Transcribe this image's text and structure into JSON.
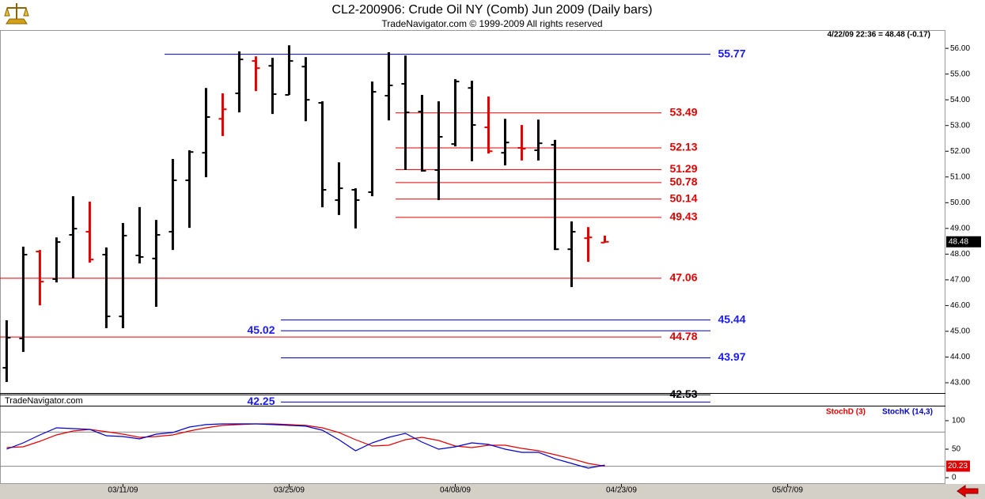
{
  "chart_data": [
    {
      "type": "ohlc",
      "title": "CL2-200906:  Crude Oil NY (Comb) Jun 2009  (Daily bars)",
      "subtitle": "TradeNavigator.com © 1999-2009 All rights reserved",
      "info": "4/22/09 22:36 = 48.48 (-0.17)",
      "watermark": "TradeNavigator.com",
      "open": [
        43.58,
        44.72,
        48.1,
        47.03,
        48.75,
        48.87,
        47.98,
        45.58,
        47.95,
        47.83,
        48.87,
        50.87,
        51.94,
        53.26,
        54.25,
        55.51,
        55.32,
        54.19,
        55.29,
        53.88,
        50.1,
        50.5,
        50.41,
        54.16,
        54.62,
        53.54,
        51.27,
        52.28,
        54.46,
        52.93,
        51.94,
        52.13,
        52.04,
        52.25,
        48.19,
        48.62,
        48.45
      ],
      "high": [
        45.43,
        48.29,
        48.16,
        48.65,
        50.25,
        50.04,
        48.26,
        49.21,
        49.83,
        49.33,
        51.7,
        52.04,
        54.46,
        54.25,
        55.88,
        55.69,
        55.63,
        56.12,
        55.66,
        53.94,
        51.57,
        50.56,
        54.71,
        55.85,
        55.72,
        54.19,
        53.94,
        54.8,
        54.74,
        54.13,
        53.26,
        53.02,
        53.23,
        52.44,
        49.27,
        49.05,
        48.72
      ],
      "low": [
        43.03,
        44.2,
        46.01,
        46.9,
        47.06,
        47.67,
        45.12,
        45.12,
        47.64,
        45.95,
        48.16,
        49.02,
        50.99,
        52.59,
        53.51,
        54.34,
        53.45,
        54.19,
        53.17,
        49.82,
        49.52,
        49.0,
        50.25,
        53.2,
        51.27,
        51.21,
        50.1,
        52.19,
        51.61,
        51.91,
        51.45,
        51.64,
        51.64,
        48.16,
        46.72,
        47.7,
        48.44
      ],
      "close": [
        44.75,
        47.98,
        46.93,
        48.47,
        48.99,
        47.79,
        45.58,
        48.72,
        47.89,
        48.75,
        50.87,
        51.97,
        53.33,
        53.63,
        55.57,
        55.23,
        54.22,
        55.51,
        54.0,
        50.5,
        50.56,
        50.1,
        54.31,
        54.56,
        53.51,
        51.24,
        52.56,
        54.71,
        53.02,
        52.0,
        52.34,
        52.1,
        52.31,
        48.19,
        48.87,
        48.65,
        48.48
      ],
      "colors": [
        "#000000",
        "#000000",
        "#e00000",
        "#000000",
        "#000000",
        "#e00000",
        "#000000",
        "#000000",
        "#000000",
        "#000000",
        "#000000",
        "#000000",
        "#000000",
        "#e00000",
        "#000000",
        "#e00000",
        "#000000",
        "#000000",
        "#000000",
        "#000000",
        "#000000",
        "#000000",
        "#000000",
        "#000000",
        "#000000",
        "#000000",
        "#000000",
        "#000000",
        "#000000",
        "#e00000",
        "#000000",
        "#e00000",
        "#000000",
        "#000000",
        "#000000",
        "#e00000",
        "#e00000"
      ],
      "levels": [
        {
          "value": 55.77,
          "color": "#0000cc"
        },
        {
          "value": 53.49,
          "color": "#e00000"
        },
        {
          "value": 52.13,
          "color": "#e00000"
        },
        {
          "value": 51.29,
          "color": "#e00000"
        },
        {
          "value": 50.78,
          "color": "#e00000"
        },
        {
          "value": 50.14,
          "color": "#e00000"
        },
        {
          "value": 49.43,
          "color": "#e00000"
        },
        {
          "value": 47.06,
          "color": "#e00000"
        },
        {
          "value": 45.44,
          "color": "#0000cc"
        },
        {
          "value": 45.02,
          "color": "#0000cc"
        },
        {
          "value": 44.78,
          "color": "#e00000"
        },
        {
          "value": 43.97,
          "color": "#0000cc"
        },
        {
          "value": 42.53,
          "color": "#000000"
        },
        {
          "value": 42.25,
          "color": "#0000cc"
        }
      ],
      "xlim": [
        -0.4,
        56.5
      ],
      "ylim": [
        42.6,
        56.65
      ],
      "yticks": [
        {
          "value": 56,
          "label": "56.00"
        },
        {
          "value": 55,
          "label": "55.00"
        },
        {
          "value": 54,
          "label": "54.00"
        },
        {
          "value": 53,
          "label": "53.00"
        },
        {
          "value": 52,
          "label": "52.00"
        },
        {
          "value": 51,
          "label": "51.00"
        },
        {
          "value": 50,
          "label": "50.00"
        },
        {
          "value": 49,
          "label": "49.00"
        },
        {
          "value": 48,
          "label": "48.00"
        },
        {
          "value": 47,
          "label": "47.00"
        },
        {
          "value": 46,
          "label": "46.00"
        },
        {
          "value": 45,
          "label": "45.00"
        },
        {
          "value": 44,
          "label": "44.00"
        },
        {
          "value": 43,
          "label": "43.00"
        }
      ]
    },
    {
      "type": "line",
      "series": [
        {
          "name": "StochD (3)",
          "color": "#e00000",
          "values": [
            52.8,
            54.2,
            63.9,
            75,
            81.9,
            84.7,
            80.6,
            76.4,
            70.8,
            72.2,
            75,
            81.9,
            87.5,
            91.7,
            93.1,
            94.4,
            94.4,
            93.1,
            91.7,
            87.5,
            79.2,
            66.7,
            55.6,
            56.9,
            66.7,
            70.8,
            65.3,
            55.6,
            52.8,
            56.9,
            56.9,
            51.4,
            47.2,
            40.3,
            33.3,
            25,
            20.23
          ]
        },
        {
          "name": "StochK (14,3)",
          "color": "#0000cc",
          "values": [
            50,
            61.1,
            75,
            87.5,
            86.1,
            84.7,
            73.6,
            72.2,
            68.1,
            76.4,
            79.2,
            88.9,
            93.1,
            94.4,
            94.4,
            94.4,
            93.1,
            91.7,
            90.3,
            83.3,
            66.7,
            47.2,
            61.1,
            70.8,
            77.8,
            62.5,
            50,
            54.2,
            61.1,
            58.3,
            50,
            44.4,
            44.4,
            33.3,
            25,
            16.7,
            22.2
          ]
        }
      ],
      "grid_lines": [
        80,
        20
      ],
      "xlim": [
        -0.4,
        56.5
      ],
      "ylim": [
        -11,
        123.5
      ],
      "yticks": [
        100,
        50,
        0
      ],
      "xticks": [
        {
          "value": 7,
          "label": "03/11/09"
        },
        {
          "value": 17,
          "label": "03/25/09"
        },
        {
          "value": 27,
          "label": "04/08/09"
        },
        {
          "value": 37,
          "label": "04/23/09"
        },
        {
          "value": 47,
          "label": "05/07/09"
        }
      ]
    }
  ]
}
